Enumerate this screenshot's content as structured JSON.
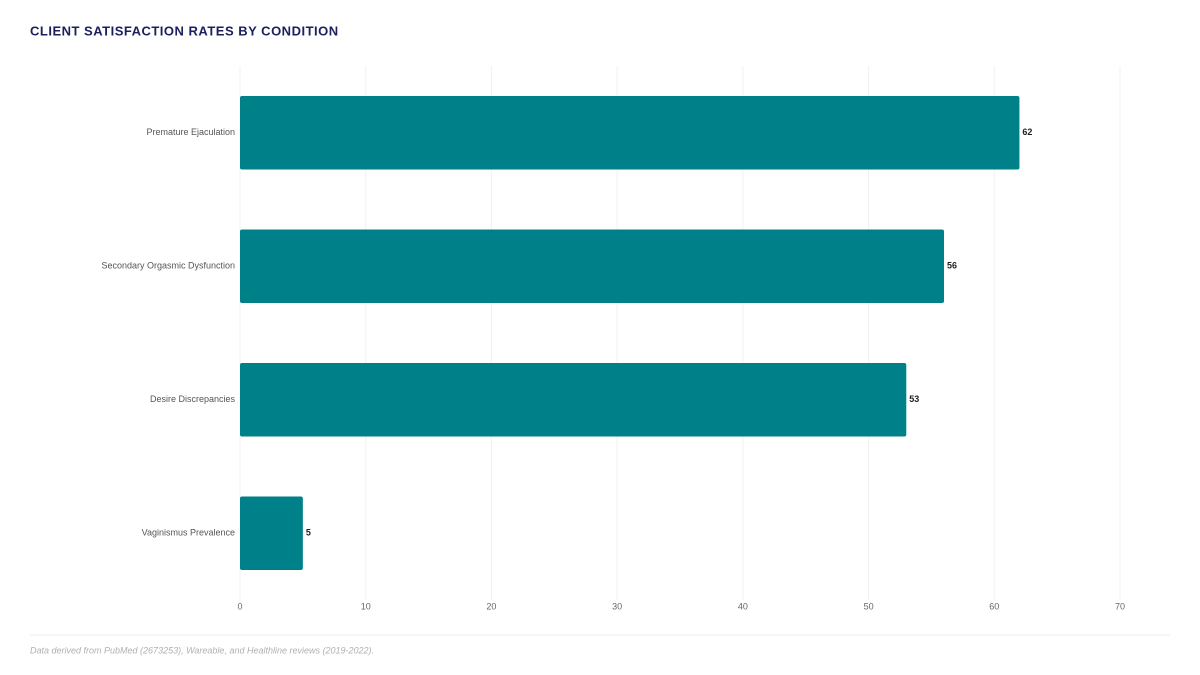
{
  "chart_data": {
    "type": "bar",
    "orientation": "horizontal",
    "title": "CLIENT SATISFACTION RATES BY CONDITION",
    "categories": [
      "Premature Ejaculation",
      "Secondary Orgasmic Dysfunction",
      "Desire Discrepancies",
      "Vaginismus Prevalence"
    ],
    "values": [
      62,
      56,
      53,
      5
    ],
    "color": "#00818a",
    "xlim": [
      0,
      70
    ],
    "xticks": [
      0,
      10,
      20,
      30,
      40,
      50,
      60,
      70
    ],
    "grid": true,
    "footnote": "Data derived from PubMed (2673253), Wareable, and Healthline reviews (2019-2022)."
  }
}
